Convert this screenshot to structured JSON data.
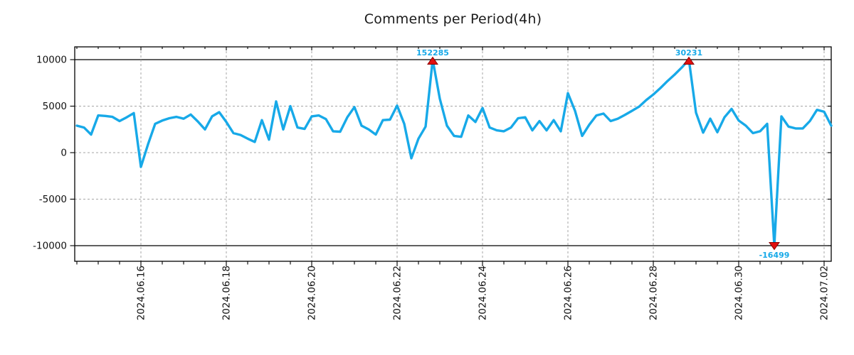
{
  "chart_data": {
    "type": "line",
    "title": "Comments per Period(4h)",
    "period": "4h",
    "xlabel": "",
    "ylabel": "",
    "grid": true,
    "legend": "none",
    "line_color": "#17a9e8",
    "marker_color": "#e01010",
    "marker_edge_color": "#8b0000",
    "annotation_text_color": "#17a9e8",
    "grid_color": "#a6a6a6",
    "clip_line_color": "#000000",
    "ylim": [
      -11500,
      11500
    ],
    "value_clip": [
      -10000,
      10000
    ],
    "y_ticks": [
      {
        "v": 10000,
        "label": "10000"
      },
      {
        "v": 5000,
        "label": "5000"
      },
      {
        "v": 0,
        "label": "0"
      },
      {
        "v": -5000,
        "label": "-5000"
      },
      {
        "v": -10000,
        "label": "-10000"
      }
    ],
    "x_ticks": [
      {
        "t": "2024.06.16 00:00",
        "label": "2024.06.16"
      },
      {
        "t": "2024.06.18 00:00",
        "label": "2024.06.18"
      },
      {
        "t": "2024.06.20 00:00",
        "label": "2024.06.20"
      },
      {
        "t": "2024.06.22 00:00",
        "label": "2024.06.22"
      },
      {
        "t": "2024.06.24 00:00",
        "label": "2024.06.24"
      },
      {
        "t": "2024.06.26 00:00",
        "label": "2024.06.26"
      },
      {
        "t": "2024.06.28 00:00",
        "label": "2024.06.28"
      },
      {
        "t": "2024.06.30 00:00",
        "label": "2024.06.30"
      },
      {
        "t": "2024.07.02 00:00",
        "label": "2024.07.02"
      }
    ],
    "annotations": [
      {
        "t": "2024.06.22 20:00",
        "value": 152285,
        "label": "152285",
        "dir": "up"
      },
      {
        "t": "2024.06.28 20:00",
        "value": 30231,
        "label": "30231",
        "dir": "up"
      },
      {
        "t": "2024.06.30 20:00",
        "value": -16499,
        "label": "-16499",
        "dir": "down"
      }
    ],
    "series": [
      {
        "name": "comments",
        "points": [
          [
            "2024.06.14 12:00",
            2900
          ],
          [
            "2024.06.14 16:00",
            2700
          ],
          [
            "2024.06.14 20:00",
            1950
          ],
          [
            "2024.06.15 00:00",
            4000
          ],
          [
            "2024.06.15 04:00",
            3950
          ],
          [
            "2024.06.15 08:00",
            3850
          ],
          [
            "2024.06.15 12:00",
            3400
          ],
          [
            "2024.06.15 16:00",
            3800
          ],
          [
            "2024.06.15 20:00",
            4250
          ],
          [
            "2024.06.16 00:00",
            -1530
          ],
          [
            "2024.06.16 04:00",
            900
          ],
          [
            "2024.06.16 08:00",
            3100
          ],
          [
            "2024.06.16 12:00",
            3450
          ],
          [
            "2024.06.16 16:00",
            3700
          ],
          [
            "2024.06.16 20:00",
            3850
          ],
          [
            "2024.06.17 00:00",
            3650
          ],
          [
            "2024.06.17 04:00",
            4100
          ],
          [
            "2024.06.17 08:00",
            3350
          ],
          [
            "2024.06.17 12:00",
            2500
          ],
          [
            "2024.06.17 16:00",
            3900
          ],
          [
            "2024.06.17 20:00",
            4350
          ],
          [
            "2024.06.18 00:00",
            3300
          ],
          [
            "2024.06.18 04:00",
            2100
          ],
          [
            "2024.06.18 08:00",
            1900
          ],
          [
            "2024.06.18 12:00",
            1500
          ],
          [
            "2024.06.18 16:00",
            1150
          ],
          [
            "2024.06.18 20:00",
            3500
          ],
          [
            "2024.06.19 00:00",
            1400
          ],
          [
            "2024.06.19 04:00",
            5500
          ],
          [
            "2024.06.19 08:00",
            2500
          ],
          [
            "2024.06.19 12:00",
            5000
          ],
          [
            "2024.06.19 16:00",
            2700
          ],
          [
            "2024.06.19 20:00",
            2550
          ],
          [
            "2024.06.20 00:00",
            3900
          ],
          [
            "2024.06.20 04:00",
            4000
          ],
          [
            "2024.06.20 08:00",
            3600
          ],
          [
            "2024.06.20 12:00",
            2300
          ],
          [
            "2024.06.20 16:00",
            2250
          ],
          [
            "2024.06.20 20:00",
            3800
          ],
          [
            "2024.06.21 00:00",
            4900
          ],
          [
            "2024.06.21 04:00",
            2900
          ],
          [
            "2024.06.21 08:00",
            2500
          ],
          [
            "2024.06.21 12:00",
            1950
          ],
          [
            "2024.06.21 16:00",
            3500
          ],
          [
            "2024.06.21 20:00",
            3550
          ],
          [
            "2024.06.22 00:00",
            5050
          ],
          [
            "2024.06.22 04:00",
            3100
          ],
          [
            "2024.06.22 08:00",
            -600
          ],
          [
            "2024.06.22 12:00",
            1500
          ],
          [
            "2024.06.22 16:00",
            2800
          ],
          [
            "2024.06.22 20:00",
            152285
          ],
          [
            "2024.06.23 00:00",
            5800
          ],
          [
            "2024.06.23 04:00",
            2900
          ],
          [
            "2024.06.23 08:00",
            1800
          ],
          [
            "2024.06.23 12:00",
            1700
          ],
          [
            "2024.06.23 16:00",
            4000
          ],
          [
            "2024.06.23 20:00",
            3300
          ],
          [
            "2024.06.24 00:00",
            4800
          ],
          [
            "2024.06.24 04:00",
            2700
          ],
          [
            "2024.06.24 08:00",
            2400
          ],
          [
            "2024.06.24 12:00",
            2300
          ],
          [
            "2024.06.24 16:00",
            2700
          ],
          [
            "2024.06.24 20:00",
            3700
          ],
          [
            "2024.06.25 00:00",
            3800
          ],
          [
            "2024.06.25 04:00",
            2400
          ],
          [
            "2024.06.25 08:00",
            3400
          ],
          [
            "2024.06.25 12:00",
            2400
          ],
          [
            "2024.06.25 16:00",
            3500
          ],
          [
            "2024.06.25 20:00",
            2300
          ],
          [
            "2024.06.26 00:00",
            6400
          ],
          [
            "2024.06.26 04:00",
            4500
          ],
          [
            "2024.06.26 08:00",
            1800
          ],
          [
            "2024.06.26 12:00",
            3000
          ],
          [
            "2024.06.26 16:00",
            4000
          ],
          [
            "2024.06.26 20:00",
            4200
          ],
          [
            "2024.06.27 00:00",
            3400
          ],
          [
            "2024.06.27 04:00",
            3650
          ],
          [
            "2024.06.27 08:00",
            4050
          ],
          [
            "2024.06.27 12:00",
            4500
          ],
          [
            "2024.06.27 16:00",
            4950
          ],
          [
            "2024.06.27 20:00",
            5650
          ],
          [
            "2024.06.28 00:00",
            6250
          ],
          [
            "2024.06.28 04:00",
            6950
          ],
          [
            "2024.06.28 08:00",
            7700
          ],
          [
            "2024.06.28 12:00",
            8400
          ],
          [
            "2024.06.28 16:00",
            9150
          ],
          [
            "2024.06.28 20:00",
            30231
          ],
          [
            "2024.06.29 00:00",
            4300
          ],
          [
            "2024.06.29 04:00",
            2150
          ],
          [
            "2024.06.29 08:00",
            3650
          ],
          [
            "2024.06.29 12:00",
            2200
          ],
          [
            "2024.06.29 16:00",
            3800
          ],
          [
            "2024.06.29 20:00",
            4700
          ],
          [
            "2024.06.30 00:00",
            3450
          ],
          [
            "2024.06.30 04:00",
            2900
          ],
          [
            "2024.06.30 08:00",
            2100
          ],
          [
            "2024.06.30 12:00",
            2300
          ],
          [
            "2024.06.30 16:00",
            3100
          ],
          [
            "2024.06.30 20:00",
            -16499
          ],
          [
            "2024.07.01 00:00",
            3900
          ],
          [
            "2024.07.01 04:00",
            2800
          ],
          [
            "2024.07.01 08:00",
            2600
          ],
          [
            "2024.07.01 12:00",
            2600
          ],
          [
            "2024.07.01 16:00",
            3400
          ],
          [
            "2024.07.01 20:00",
            4600
          ],
          [
            "2024.07.02 00:00",
            4400
          ],
          [
            "2024.07.02 04:00",
            2900
          ]
        ]
      }
    ]
  }
}
